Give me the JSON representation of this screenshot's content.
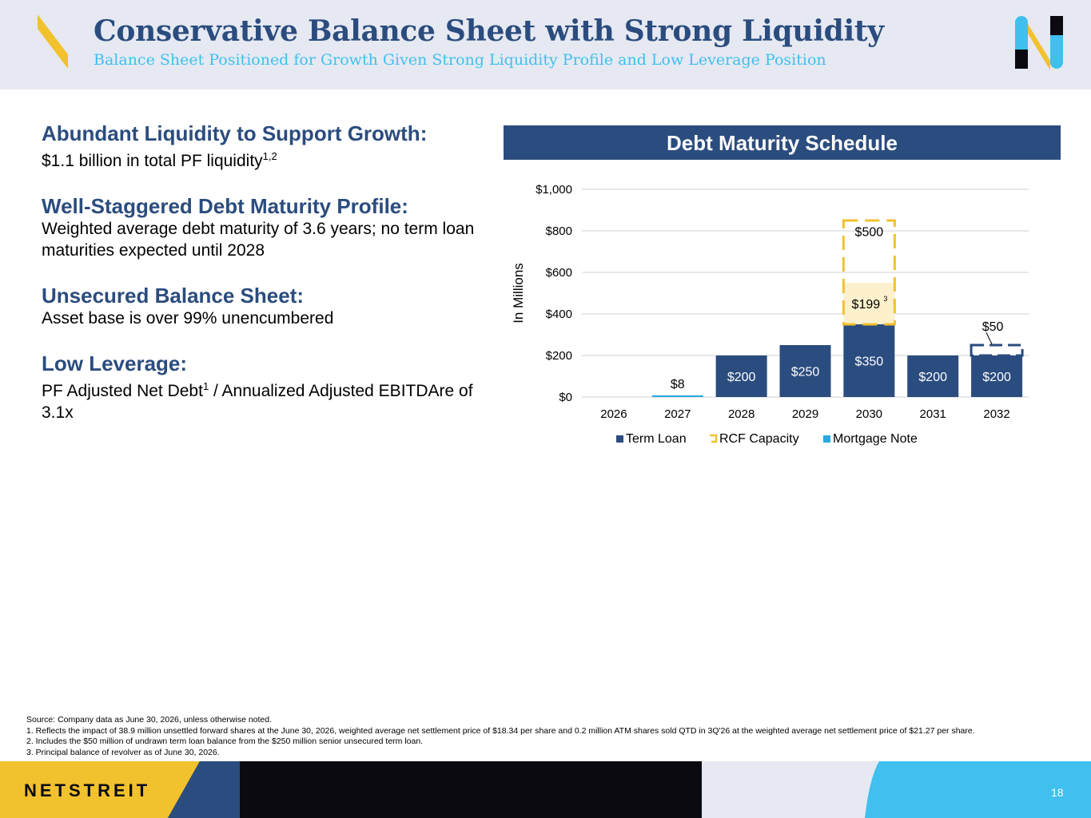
{
  "header": {
    "title": "Conservative Balance Sheet with Strong Liquidity",
    "subtitle": "Balance Sheet Positioned for Growth Given Strong Liquidity Profile and Low Leverage Position"
  },
  "highlights": [
    {
      "heading": "Abundant Liquidity to Support Growth:",
      "body": "$1.1 billion in total PF liquidity",
      "sup": "1,2"
    },
    {
      "heading": "Well-Staggered Debt Maturity Profile:",
      "body": "Weighted average debt maturity of 3.6 years; no term loan maturities expected until 2028"
    },
    {
      "heading": "Unsecured Balance Sheet:",
      "body": "Asset base is over 99% unencumbered"
    },
    {
      "heading": "Low Leverage:",
      "body_pre": "PF Adjusted Net Debt",
      "sup": "1",
      "body_post": " / Annualized Adjusted EBITDAre of 3.1x"
    }
  ],
  "chart_banner": "Debt Maturity Schedule",
  "chart_data": {
    "type": "bar",
    "stacked": true,
    "title": "Debt Maturity Schedule",
    "ylabel": "In Millions",
    "ylim": [
      0,
      1000
    ],
    "yticks": [
      0,
      200,
      400,
      600,
      800,
      1000
    ],
    "ytick_labels": [
      "$0",
      "$200",
      "$400",
      "$600",
      "$800",
      "$1,000"
    ],
    "categories": [
      "2026",
      "2027",
      "2028",
      "2029",
      "2030",
      "2031",
      "2032"
    ],
    "series": [
      {
        "name": "Term Loan",
        "color": "#2b4c7e",
        "values": [
          0,
          0,
          200,
          250,
          350,
          200,
          200
        ],
        "labels": [
          "",
          "",
          "$200",
          "$250",
          "$350",
          "$200",
          "$200"
        ]
      },
      {
        "name": "Mortgage Note",
        "color": "#29a9e0",
        "values": [
          0,
          8,
          0,
          0,
          0,
          0,
          0
        ],
        "labels": [
          "",
          "$8",
          "",
          "",
          "",
          "",
          ""
        ]
      }
    ],
    "rcf": {
      "name": "RCF Capacity",
      "category": "2030",
      "capacity": 500,
      "drawn": 199,
      "label_capacity": "$500",
      "label_drawn": "$199",
      "drawn_sup": "3",
      "color": "#f2c12e",
      "fill": "#fdf0cc"
    },
    "undrawn": {
      "category": "2032",
      "value": 50,
      "label": "$50"
    },
    "legend": [
      "Term Loan",
      "RCF Capacity",
      "Mortgage Note"
    ],
    "legend_position": "bottom",
    "grid": true
  },
  "footnotes": [
    "Source: Company data as June 30, 2026, unless otherwise noted.",
    "1.   Reflects the impact of 38.9 million unsettled forward shares at the June 30, 2026, weighted average net settlement price of $18.34 per share and 0.2 million ATM shares sold QTD in 3Q'26 at the weighted average net settlement price of $21.27 per share.",
    "2.   Includes the $50 million of undrawn term loan balance from the $250 million senior unsecured term loan.",
    "3.   Principal balance of revolver as of June 30, 2026."
  ],
  "footer": {
    "brand": "NETSTREIT",
    "page_number": "18"
  },
  "colors": {
    "navy": "#2b4c7e",
    "sky": "#3fc0ee",
    "gold": "#f2c12e",
    "black": "#0a0a10"
  }
}
